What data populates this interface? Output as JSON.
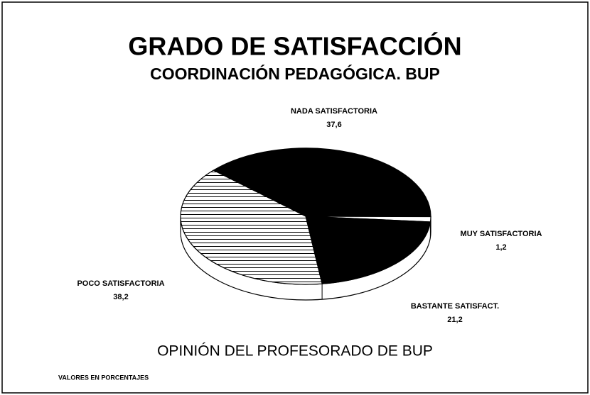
{
  "chart_data": {
    "type": "pie",
    "title": "GRADO DE SATISFACCIÓN",
    "subtitle": "COORDINACIÓN PEDAGÓGICA. BUP",
    "x_label": "OPINIÓN DEL PROFESORADO DE BUP",
    "note": "VALORES EN PORCENTAJES",
    "categories": [
      "NADA SATISFACTORIA",
      "MUY SATISFACTORIA",
      "BASTANTE SATISFACT.",
      "POCO SATISFACTORIA"
    ],
    "values": [
      37.6,
      1.2,
      21.2,
      38.2
    ],
    "value_labels": [
      "37,6",
      "1,2",
      "21,2",
      "38,2"
    ],
    "colors": [
      "#000000",
      "#ffffff",
      "#000000",
      "#ffffff"
    ],
    "hatch": [
      false,
      false,
      false,
      true
    ]
  }
}
